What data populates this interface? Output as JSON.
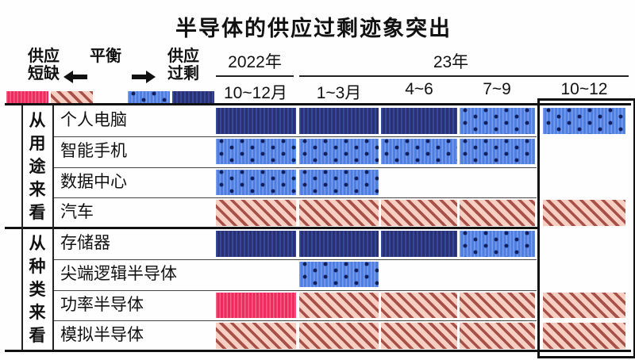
{
  "title": "半导体的供应过剩迹象突出",
  "legend": {
    "shortage_line1": "供应",
    "shortage_line2": "短缺",
    "balance": "平衡",
    "surplus_line1": "供应",
    "surplus_line2": "过剩",
    "swatches": [
      {
        "key": "red",
        "meaning": "供应短缺(程度大)"
      },
      {
        "key": "hatch",
        "meaning": "供应短缺(程度小)"
      },
      {
        "key": "dot",
        "meaning": "供应过剩(程度小)"
      },
      {
        "key": "navy",
        "meaning": "供应过剩(程度大)"
      }
    ]
  },
  "header": {
    "year1": "2022年",
    "year2": "23年",
    "quarters": [
      "10~12月",
      "1~3月",
      "4~6",
      "7~9",
      "10~12"
    ]
  },
  "colors": {
    "shortage-severe": "#ee2b5c",
    "shortage-mild-bg": "#f8cfc3",
    "shortage-mild-stripe": "#a85148",
    "surplus-mild": "#4f7ee3",
    "surplus-severe": "#2b3170",
    "dot": "#101f5c"
  },
  "chart_data": {
    "type": "heatmap",
    "title": "半导体的供应过剩迹象突出",
    "columns": [
      "2022年10~12月",
      "23年1~3月",
      "23年4~6月",
      "23年7~9月",
      "23年10~12月"
    ],
    "states": {
      "red": "供应短缺(程度大)",
      "hatch": "供应短缺(程度小)",
      "dot": "供应过剩(程度小)",
      "navy": "供应过剩(程度大)",
      "null": "平衡/空白"
    },
    "highlighted_column": "23年10~12月",
    "groups": [
      {
        "group": "从用途来看",
        "rows": [
          {
            "label": "个人电脑",
            "values": [
              "navy",
              "navy",
              "navy",
              "dot",
              "dot"
            ]
          },
          {
            "label": "智能手机",
            "values": [
              "dot",
              "dot",
              "dot",
              "dot",
              null
            ]
          },
          {
            "label": "数据中心",
            "values": [
              "dot",
              "dot",
              null,
              null,
              null
            ]
          },
          {
            "label": "汽车",
            "values": [
              "hatch",
              "hatch",
              "hatch",
              "hatch",
              "hatch"
            ]
          }
        ]
      },
      {
        "group": "从种类来看",
        "rows": [
          {
            "label": "存储器",
            "values": [
              "navy",
              "navy",
              "navy",
              "dot",
              null
            ]
          },
          {
            "label": "尖端逻辑半导体",
            "values": [
              null,
              "dot",
              null,
              null,
              null
            ]
          },
          {
            "label": "功率半导体",
            "values": [
              "red",
              "hatch",
              "hatch",
              "hatch",
              "hatch"
            ]
          },
          {
            "label": "模拟半导体",
            "values": [
              "hatch",
              "hatch",
              "hatch",
              "hatch",
              "hatch"
            ]
          }
        ]
      }
    ]
  }
}
